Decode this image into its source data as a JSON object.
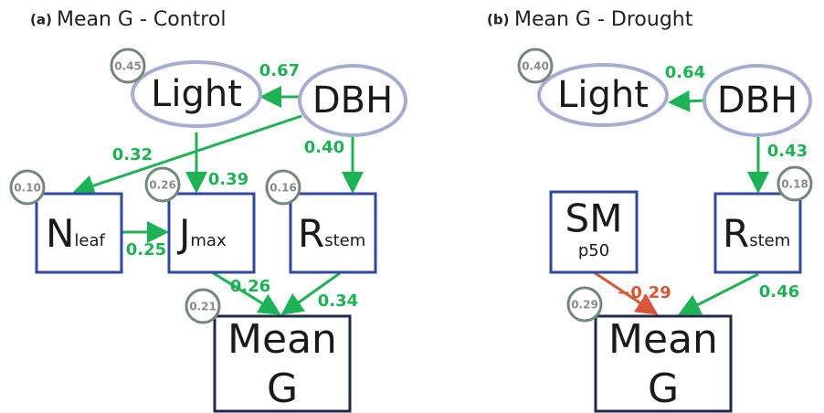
{
  "panels": [
    {
      "label": "(a)",
      "title": "Mean G - Control",
      "nodes": [
        {
          "label": "Light",
          "r2": "0.45"
        },
        {
          "label": "DBH"
        },
        {
          "label": "N",
          "sub": "leaf",
          "r2": "0.10"
        },
        {
          "label": "J",
          "sub": "max",
          "r2": "0.26"
        },
        {
          "label": "R",
          "sub": "stem",
          "r2": "0.16"
        },
        {
          "label": "Mean",
          "label2": "G",
          "r2": "0.21"
        }
      ],
      "edges": [
        {
          "from": "DBH",
          "to": "Light",
          "label": "0.67"
        },
        {
          "from": "DBH",
          "to": "Nleaf",
          "label": "0.32"
        },
        {
          "from": "Light",
          "to": "Jmax",
          "label": "0.39"
        },
        {
          "from": "DBH",
          "to": "Rstem",
          "label": "0.40"
        },
        {
          "from": "Nleaf",
          "to": "Jmax",
          "label": "0.25"
        },
        {
          "from": "Jmax",
          "to": "Mean G",
          "label": "0.26"
        },
        {
          "from": "Rstem",
          "to": "Mean G",
          "label": "0.34"
        }
      ]
    },
    {
      "label": "(b)",
      "title": "Mean G - Drought",
      "nodes": [
        {
          "label": "Light",
          "r2": "0.40"
        },
        {
          "label": "DBH"
        },
        {
          "label": "SM",
          "sub": "p50"
        },
        {
          "label": "R",
          "sub": "stem",
          "r2": "0.18"
        },
        {
          "label": "Mean",
          "label2": "G",
          "r2": "0.29"
        }
      ],
      "edges": [
        {
          "from": "DBH",
          "to": "Light",
          "label": "0.64"
        },
        {
          "from": "DBH",
          "to": "Rstem",
          "label": "0.43"
        },
        {
          "from": "SMp50",
          "to": "Mean G",
          "label": "−0.29"
        },
        {
          "from": "Rstem",
          "to": "Mean G",
          "label": "0.46"
        }
      ]
    }
  ]
}
